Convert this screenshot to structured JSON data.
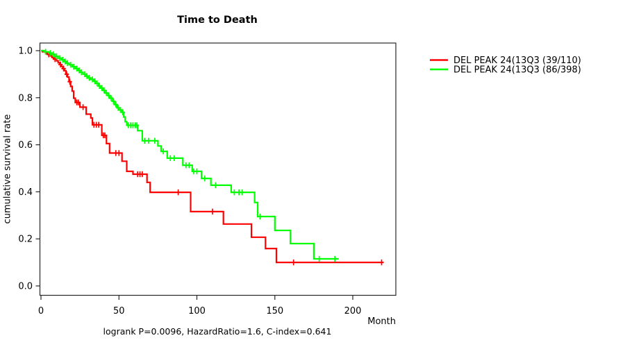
{
  "chart_data": {
    "type": "line",
    "subtype": "kaplan-meier-step",
    "title": "Time to Death",
    "xlabel": "Month",
    "ylabel": "cumulative survival rate",
    "footer": "logrank P=0.0096, HazardRatio=1.6, C-index=0.641",
    "xlim": [
      0,
      228
    ],
    "ylim": [
      0,
      1
    ],
    "xticks": [
      0,
      50,
      100,
      150,
      200
    ],
    "yticks": [
      0.0,
      0.2,
      0.4,
      0.6,
      0.8,
      1.0
    ],
    "grid": false,
    "legend_position": "right-outside",
    "legend": [
      {
        "label": "DEL PEAK 24(13Q3 (39/110)",
        "color": "#ff0000"
      },
      {
        "label": "DEL PEAK 24(13Q3 (86/398)",
        "color": "#00ff00"
      }
    ],
    "series": [
      {
        "name": "DEL PEAK 24(13Q3 (39/110)",
        "color": "#ff0000",
        "end": 219.5,
        "steps": [
          [
            0,
            1.0
          ],
          [
            1,
            0.995
          ],
          [
            3,
            0.99
          ],
          [
            4,
            0.984
          ],
          [
            6,
            0.978
          ],
          [
            7,
            0.971
          ],
          [
            8,
            0.964
          ],
          [
            10,
            0.957
          ],
          [
            11,
            0.949
          ],
          [
            12,
            0.941
          ],
          [
            13,
            0.933
          ],
          [
            14,
            0.924
          ],
          [
            15,
            0.915
          ],
          [
            16,
            0.9
          ],
          [
            17,
            0.888
          ],
          [
            18,
            0.868
          ],
          [
            19,
            0.848
          ],
          [
            20,
            0.828
          ],
          [
            21,
            0.798
          ],
          [
            22,
            0.78
          ],
          [
            25,
            0.76
          ],
          [
            29,
            0.73
          ],
          [
            32,
            0.714
          ],
          [
            33,
            0.685
          ],
          [
            39,
            0.64
          ],
          [
            42,
            0.605
          ],
          [
            44,
            0.565
          ],
          [
            52,
            0.53
          ],
          [
            55,
            0.487
          ],
          [
            59,
            0.475
          ],
          [
            68,
            0.44
          ],
          [
            70,
            0.398
          ],
          [
            96,
            0.316
          ],
          [
            117,
            0.263
          ],
          [
            135,
            0.207
          ],
          [
            144,
            0.159
          ],
          [
            151,
            0.1
          ]
        ],
        "censors": [
          [
            5,
            0.984
          ],
          [
            9,
            0.964
          ],
          [
            12.5,
            0.941
          ],
          [
            14.5,
            0.924
          ],
          [
            16.5,
            0.9
          ],
          [
            18.5,
            0.868
          ],
          [
            23,
            0.78
          ],
          [
            24,
            0.78
          ],
          [
            27,
            0.76
          ],
          [
            34,
            0.685
          ],
          [
            35.5,
            0.685
          ],
          [
            37,
            0.685
          ],
          [
            40,
            0.64
          ],
          [
            41,
            0.64
          ],
          [
            48,
            0.565
          ],
          [
            50,
            0.565
          ],
          [
            62,
            0.475
          ],
          [
            63.5,
            0.475
          ],
          [
            65,
            0.475
          ],
          [
            88,
            0.398
          ],
          [
            110,
            0.316
          ],
          [
            162,
            0.1
          ],
          [
            218.5,
            0.1
          ]
        ]
      },
      {
        "name": "DEL PEAK 24(13Q3 (86/398)",
        "color": "#00ff00",
        "end": 191,
        "steps": [
          [
            0,
            1.0
          ],
          [
            2,
            0.995
          ],
          [
            5,
            0.99
          ],
          [
            7,
            0.985
          ],
          [
            9,
            0.976
          ],
          [
            11,
            0.968
          ],
          [
            13,
            0.961
          ],
          [
            15,
            0.954
          ],
          [
            16,
            0.947
          ],
          [
            18,
            0.94
          ],
          [
            20,
            0.932
          ],
          [
            22,
            0.924
          ],
          [
            24,
            0.916
          ],
          [
            25,
            0.908
          ],
          [
            27,
            0.9
          ],
          [
            29,
            0.892
          ],
          [
            30,
            0.884
          ],
          [
            32,
            0.878
          ],
          [
            34,
            0.87
          ],
          [
            35,
            0.861
          ],
          [
            37,
            0.85
          ],
          [
            38,
            0.841
          ],
          [
            40,
            0.831
          ],
          [
            41,
            0.82
          ],
          [
            43,
            0.809
          ],
          [
            44,
            0.798
          ],
          [
            46,
            0.785
          ],
          [
            47,
            0.771
          ],
          [
            49,
            0.757
          ],
          [
            50,
            0.748
          ],
          [
            52,
            0.738
          ],
          [
            53,
            0.718
          ],
          [
            54,
            0.698
          ],
          [
            55,
            0.683
          ],
          [
            62,
            0.66
          ],
          [
            65,
            0.617
          ],
          [
            75,
            0.595
          ],
          [
            77,
            0.572
          ],
          [
            81,
            0.543
          ],
          [
            91,
            0.513
          ],
          [
            97,
            0.487
          ],
          [
            103,
            0.457
          ],
          [
            109,
            0.428
          ],
          [
            122,
            0.398
          ],
          [
            137,
            0.355
          ],
          [
            139,
            0.295
          ],
          [
            150,
            0.236
          ],
          [
            160,
            0.18
          ],
          [
            175,
            0.115
          ]
        ],
        "censors": [
          [
            3,
            0.995
          ],
          [
            6,
            0.99
          ],
          [
            8,
            0.985
          ],
          [
            10,
            0.976
          ],
          [
            12,
            0.968
          ],
          [
            14,
            0.961
          ],
          [
            15.5,
            0.954
          ],
          [
            17,
            0.947
          ],
          [
            19,
            0.94
          ],
          [
            21,
            0.932
          ],
          [
            23,
            0.924
          ],
          [
            24.5,
            0.916
          ],
          [
            26,
            0.908
          ],
          [
            28,
            0.9
          ],
          [
            29.5,
            0.892
          ],
          [
            31,
            0.884
          ],
          [
            33,
            0.878
          ],
          [
            34.5,
            0.87
          ],
          [
            36,
            0.861
          ],
          [
            37.5,
            0.85
          ],
          [
            39,
            0.841
          ],
          [
            40.5,
            0.831
          ],
          [
            42,
            0.82
          ],
          [
            43.5,
            0.809
          ],
          [
            45,
            0.798
          ],
          [
            46.5,
            0.785
          ],
          [
            48,
            0.771
          ],
          [
            49.5,
            0.757
          ],
          [
            51,
            0.748
          ],
          [
            52.5,
            0.738
          ],
          [
            56,
            0.683
          ],
          [
            57.5,
            0.683
          ],
          [
            59,
            0.683
          ],
          [
            60.5,
            0.683
          ],
          [
            61.5,
            0.683
          ],
          [
            66.5,
            0.617
          ],
          [
            69,
            0.617
          ],
          [
            73,
            0.617
          ],
          [
            78.5,
            0.572
          ],
          [
            83,
            0.543
          ],
          [
            85.5,
            0.543
          ],
          [
            93,
            0.513
          ],
          [
            95,
            0.513
          ],
          [
            98,
            0.487
          ],
          [
            100,
            0.487
          ],
          [
            105,
            0.457
          ],
          [
            112,
            0.428
          ],
          [
            124,
            0.398
          ],
          [
            127,
            0.398
          ],
          [
            129,
            0.398
          ],
          [
            140.5,
            0.295
          ],
          [
            178.5,
            0.115
          ],
          [
            188.5,
            0.115
          ]
        ]
      }
    ]
  }
}
